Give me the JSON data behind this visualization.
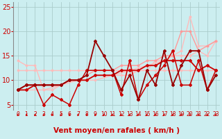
{
  "background_color": "#cceef0",
  "grid_color": "#aacccc",
  "xlim": [
    -0.5,
    23.5
  ],
  "ylim": [
    4,
    26
  ],
  "yticks": [
    5,
    10,
    15,
    20,
    25
  ],
  "xticks": [
    0,
    1,
    2,
    3,
    4,
    5,
    6,
    7,
    8,
    9,
    10,
    11,
    12,
    13,
    14,
    15,
    16,
    17,
    18,
    19,
    20,
    21,
    22,
    23
  ],
  "xlabel": "Vent moyen/en rafales ( km/h )",
  "xlabel_color": "#cc0000",
  "xlabel_fontsize": 7.5,
  "tick_color": "#cc0000",
  "ytick_fontsize": 7,
  "xtick_fontsize": 5.5,
  "arrow_color": "#cc0000",
  "lines": [
    {
      "x": [
        0,
        1,
        2,
        3,
        4,
        5,
        6,
        7,
        8,
        9,
        10,
        11,
        12,
        13,
        14,
        15,
        16,
        17,
        18,
        19,
        20,
        21,
        22,
        23
      ],
      "y": [
        12,
        12,
        12,
        12,
        12,
        12,
        12,
        12,
        12,
        12,
        12,
        12,
        12,
        12,
        12,
        12,
        12,
        12,
        12,
        12,
        12,
        12,
        12,
        12
      ],
      "color": "#ffbbbb",
      "lw": 1.0,
      "marker": "D",
      "ms": 1.5
    },
    {
      "x": [
        0,
        1,
        2,
        3,
        4,
        5,
        6,
        7,
        8,
        9,
        10,
        11,
        12,
        13,
        14,
        15,
        16,
        17,
        18,
        19,
        20,
        21,
        22,
        23
      ],
      "y": [
        14,
        13,
        13,
        8,
        8,
        9,
        10,
        10,
        10,
        11,
        11,
        11,
        11,
        11,
        12,
        12,
        14,
        14,
        15,
        15,
        15,
        16,
        15,
        18
      ],
      "color": "#ffbbbb",
      "lw": 1.0,
      "marker": "D",
      "ms": 1.5
    },
    {
      "x": [
        0,
        3,
        5,
        7,
        9,
        11,
        13,
        15,
        17,
        19,
        20,
        21,
        22,
        23
      ],
      "y": [
        8,
        8,
        9,
        10,
        10,
        11,
        12,
        13,
        14,
        16,
        23,
        17,
        17,
        18
      ],
      "color": "#ffbbbb",
      "lw": 1.0,
      "marker": "D",
      "ms": 1.5
    },
    {
      "x": [
        0,
        1,
        2,
        3,
        4,
        5,
        6,
        7,
        8,
        9,
        10,
        11,
        12,
        13,
        14,
        15,
        16,
        17,
        18,
        19,
        20,
        21,
        22,
        23
      ],
      "y": [
        8,
        9,
        9,
        9,
        9,
        9,
        10,
        10,
        11,
        12,
        12,
        12,
        13,
        13,
        13,
        14,
        14,
        15,
        15,
        20,
        20,
        16,
        17,
        18
      ],
      "color": "#ff9999",
      "lw": 1.0,
      "marker": "D",
      "ms": 1.5
    },
    {
      "x": [
        0,
        1,
        2,
        3,
        4,
        5,
        6,
        7,
        8,
        9,
        10,
        11,
        12,
        13,
        14,
        15,
        16,
        17,
        18,
        19,
        20,
        21,
        22,
        23
      ],
      "y": [
        8,
        8,
        9,
        9,
        9,
        9,
        10,
        10,
        10,
        11,
        11,
        11,
        12,
        12,
        12,
        13,
        13,
        14,
        14,
        14,
        14,
        12,
        13,
        12
      ],
      "color": "#cc0000",
      "lw": 1.3,
      "marker": "D",
      "ms": 2.0
    },
    {
      "x": [
        0,
        1,
        2,
        3,
        4,
        5,
        6,
        7,
        8,
        9,
        10,
        11,
        12,
        13,
        14,
        15,
        16,
        17,
        18,
        19,
        20,
        21,
        22,
        23
      ],
      "y": [
        8,
        9,
        9,
        5,
        7,
        6,
        5,
        9,
        12,
        12,
        12,
        12,
        7,
        14,
        6,
        9,
        11,
        13,
        16,
        9,
        9,
        14,
        8,
        12
      ],
      "color": "#cc0000",
      "lw": 1.1,
      "marker": "D",
      "ms": 2.0
    },
    {
      "x": [
        0,
        1,
        2,
        3,
        4,
        5,
        6,
        7,
        8,
        9,
        10,
        11,
        12,
        13,
        14,
        15,
        16,
        17,
        18,
        19,
        20,
        21,
        22,
        23
      ],
      "y": [
        8,
        9,
        9,
        9,
        9,
        9,
        10,
        10,
        11,
        18,
        15,
        12,
        8,
        11,
        6,
        12,
        9,
        16,
        9,
        13,
        16,
        16,
        8,
        11
      ],
      "color": "#990000",
      "lw": 1.3,
      "marker": "D",
      "ms": 2.0
    }
  ]
}
